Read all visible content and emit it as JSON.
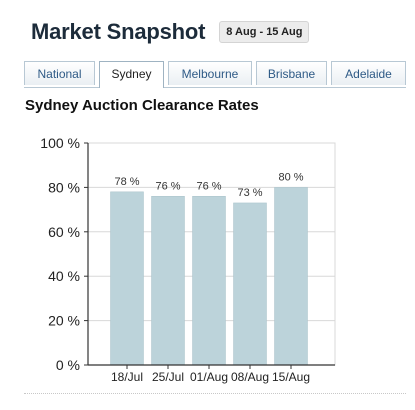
{
  "header": {
    "title": "Market Snapshot",
    "date_range": "8 Aug - 15 Aug"
  },
  "tabs": [
    {
      "label": "National",
      "active": false
    },
    {
      "label": "Sydney",
      "active": true
    },
    {
      "label": "Melbourne",
      "active": false
    },
    {
      "label": "Brisbane",
      "active": false
    },
    {
      "label": "Adelaide",
      "active": false
    }
  ],
  "colors": {
    "bar": "#bcd3da",
    "bar_edge": "#a9c2ca",
    "axis": "#333333",
    "grid": "#d8d8d8",
    "tab_text": "#2e5a86"
  },
  "chart_data": {
    "type": "bar",
    "title": "Sydney Auction Clearance Rates",
    "xlabel": "",
    "ylabel": "",
    "categories": [
      "18/Jul",
      "25/Jul",
      "01/Aug",
      "08/Aug",
      "15/Aug"
    ],
    "values": [
      78,
      76,
      76,
      73,
      80
    ],
    "data_labels": [
      "78 %",
      "76 %",
      "76 %",
      "73 %",
      "80 %"
    ],
    "ylim": [
      0,
      100
    ],
    "yticks": [
      0,
      20,
      40,
      60,
      80,
      100
    ],
    "ytick_labels": [
      "0 %",
      "20 %",
      "40 %",
      "60 %",
      "80 %",
      "100 %"
    ],
    "grid": true,
    "legend": "none"
  }
}
